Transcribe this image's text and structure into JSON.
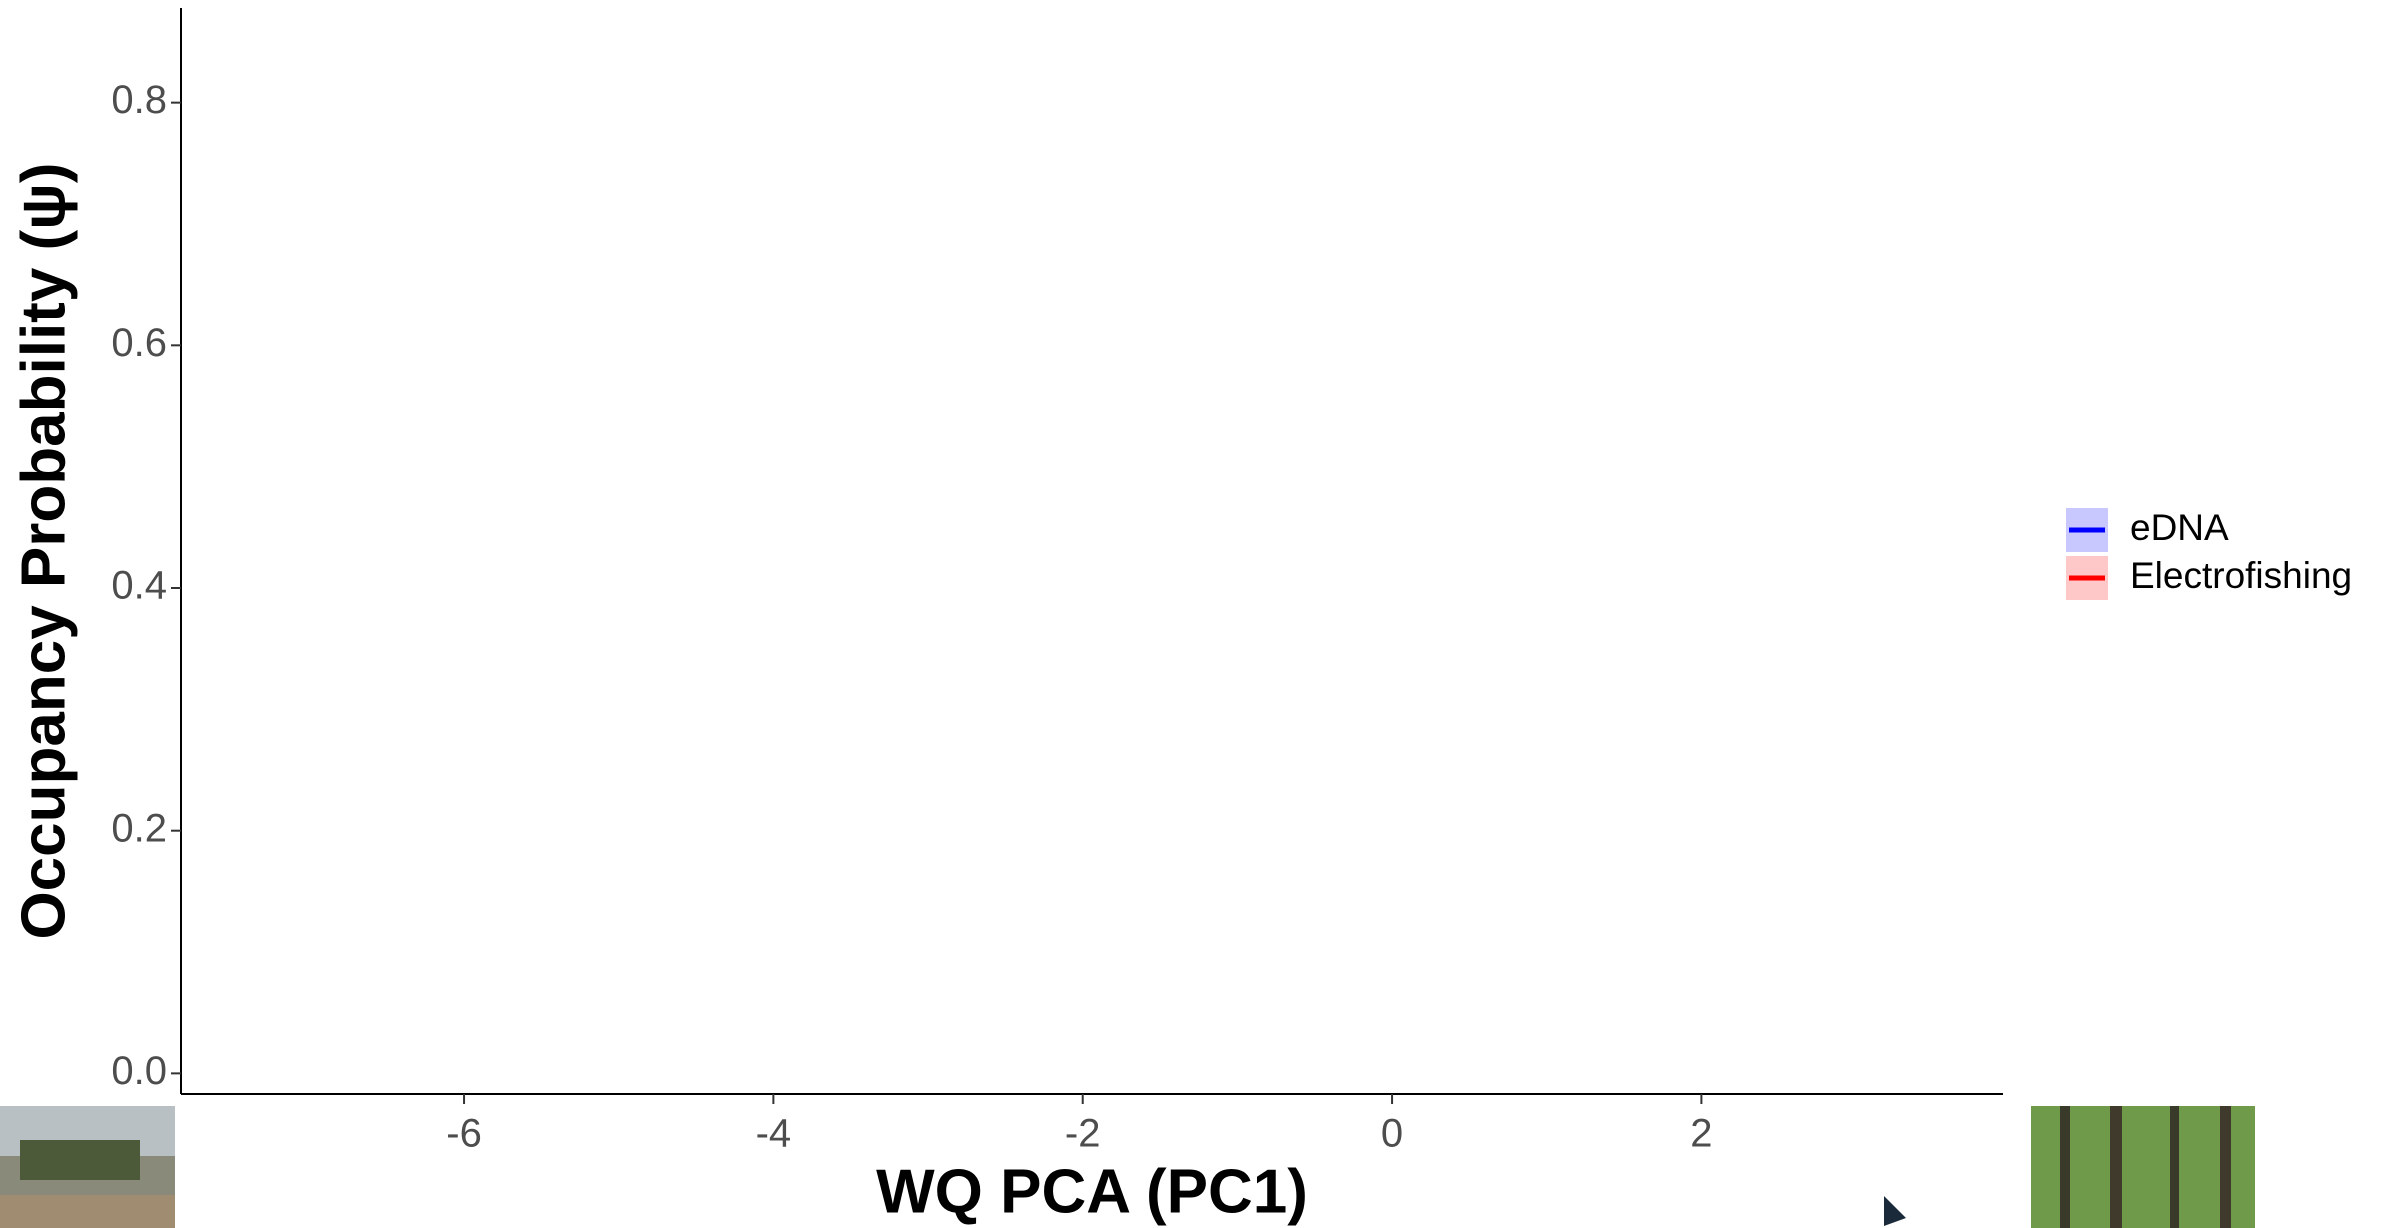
{
  "chart_data": {
    "type": "line",
    "x_label": "WQ PCA (PC1)",
    "y_label": "Occupancy Probability (ψ)",
    "xlim": [
      -7.83,
      3.95
    ],
    "ylim": [
      -0.017,
      0.878
    ],
    "xticks": [
      -6,
      -4,
      -2,
      0,
      2
    ],
    "yticks": [
      {
        "value": 0,
        "label": "0.0"
      },
      0.2,
      0.4,
      0.6,
      0.8
    ],
    "grid": false,
    "legend_position": "right",
    "series": [
      {
        "name": "eDNA",
        "color": "#0000ff",
        "fill": "#c8c8ff"
      },
      {
        "name": "Electrofishing",
        "color": "#ff0000",
        "fill": "#ffc8c8"
      }
    ]
  }
}
